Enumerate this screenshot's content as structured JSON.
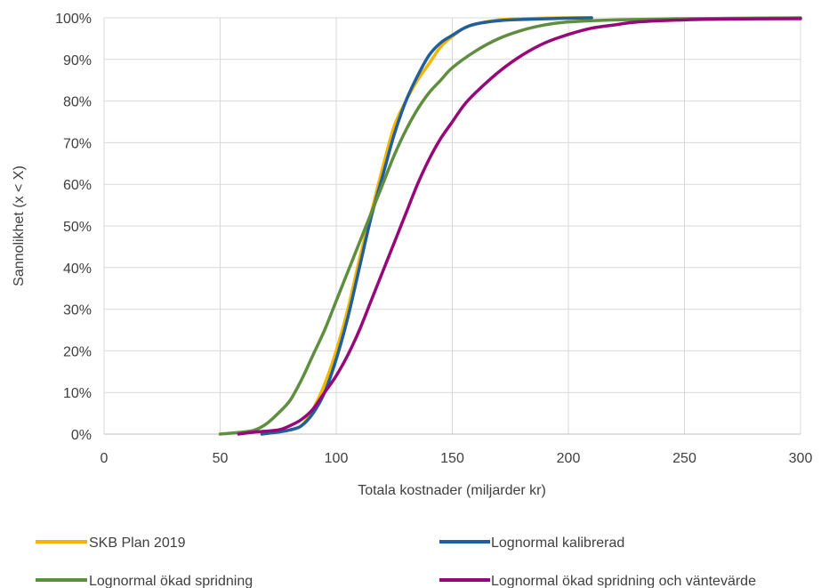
{
  "chart_data": {
    "type": "line",
    "title": "",
    "xlabel": "Totala kostnader (miljarder kr)",
    "ylabel": "Sannolikhet (x < X)",
    "xlim": [
      0,
      300
    ],
    "ylim": [
      0,
      1
    ],
    "x_ticks": [
      "0",
      "50",
      "100",
      "150",
      "200",
      "250",
      "300"
    ],
    "y_ticks": [
      "0%",
      "10%",
      "20%",
      "30%",
      "40%",
      "50%",
      "60%",
      "70%",
      "80%",
      "90%",
      "100%"
    ],
    "grid": "vertical and horizontal",
    "legend_position": "bottom",
    "series": [
      {
        "name": "SKB Plan 2019",
        "color": "#F2B600",
        "points": [
          [
            68,
            0.0
          ],
          [
            75,
            0.005
          ],
          [
            80,
            0.01
          ],
          [
            85,
            0.02
          ],
          [
            90,
            0.06
          ],
          [
            95,
            0.12
          ],
          [
            100,
            0.2
          ],
          [
            105,
            0.3
          ],
          [
            110,
            0.42
          ],
          [
            115,
            0.53
          ],
          [
            120,
            0.64
          ],
          [
            125,
            0.74
          ],
          [
            130,
            0.8
          ],
          [
            135,
            0.85
          ],
          [
            140,
            0.89
          ],
          [
            145,
            0.93
          ],
          [
            150,
            0.955
          ],
          [
            155,
            0.975
          ],
          [
            160,
            0.985
          ],
          [
            170,
            0.995
          ],
          [
            180,
            0.998
          ],
          [
            200,
            1.0
          ],
          [
            210,
            1.0
          ]
        ]
      },
      {
        "name": "Lognormal kalibrerad",
        "color": "#1F5F9E",
        "points": [
          [
            68,
            0.0
          ],
          [
            75,
            0.005
          ],
          [
            80,
            0.01
          ],
          [
            85,
            0.02
          ],
          [
            90,
            0.05
          ],
          [
            95,
            0.1
          ],
          [
            100,
            0.18
          ],
          [
            105,
            0.28
          ],
          [
            110,
            0.4
          ],
          [
            115,
            0.52
          ],
          [
            120,
            0.62
          ],
          [
            125,
            0.72
          ],
          [
            130,
            0.8
          ],
          [
            135,
            0.86
          ],
          [
            140,
            0.91
          ],
          [
            145,
            0.94
          ],
          [
            150,
            0.958
          ],
          [
            155,
            0.975
          ],
          [
            160,
            0.985
          ],
          [
            170,
            0.993
          ],
          [
            180,
            0.996
          ],
          [
            200,
            0.999
          ],
          [
            210,
            1.0
          ]
        ]
      },
      {
        "name": "Lognormal ökad spridning",
        "color": "#5E8E3E",
        "points": [
          [
            50,
            0.0
          ],
          [
            60,
            0.005
          ],
          [
            65,
            0.01
          ],
          [
            70,
            0.025
          ],
          [
            75,
            0.05
          ],
          [
            80,
            0.08
          ],
          [
            85,
            0.13
          ],
          [
            90,
            0.19
          ],
          [
            95,
            0.25
          ],
          [
            100,
            0.32
          ],
          [
            105,
            0.39
          ],
          [
            110,
            0.46
          ],
          [
            115,
            0.53
          ],
          [
            120,
            0.6
          ],
          [
            125,
            0.67
          ],
          [
            130,
            0.73
          ],
          [
            135,
            0.78
          ],
          [
            140,
            0.82
          ],
          [
            145,
            0.85
          ],
          [
            150,
            0.88
          ],
          [
            160,
            0.92
          ],
          [
            170,
            0.95
          ],
          [
            180,
            0.97
          ],
          [
            190,
            0.983
          ],
          [
            200,
            0.99
          ],
          [
            220,
            0.995
          ],
          [
            250,
            0.998
          ],
          [
            300,
            1.0
          ]
        ]
      },
      {
        "name": "Lognormal ökad spridning och väntevärde",
        "color": "#96087A",
        "points": [
          [
            58,
            0.0
          ],
          [
            65,
            0.005
          ],
          [
            75,
            0.01
          ],
          [
            80,
            0.02
          ],
          [
            85,
            0.035
          ],
          [
            90,
            0.06
          ],
          [
            95,
            0.1
          ],
          [
            100,
            0.14
          ],
          [
            105,
            0.19
          ],
          [
            110,
            0.25
          ],
          [
            115,
            0.32
          ],
          [
            120,
            0.39
          ],
          [
            125,
            0.46
          ],
          [
            130,
            0.53
          ],
          [
            135,
            0.6
          ],
          [
            140,
            0.66
          ],
          [
            145,
            0.71
          ],
          [
            150,
            0.75
          ],
          [
            155,
            0.79
          ],
          [
            160,
            0.82
          ],
          [
            170,
            0.87
          ],
          [
            180,
            0.91
          ],
          [
            190,
            0.94
          ],
          [
            200,
            0.96
          ],
          [
            210,
            0.975
          ],
          [
            220,
            0.983
          ],
          [
            230,
            0.99
          ],
          [
            250,
            0.995
          ],
          [
            270,
            0.997
          ],
          [
            300,
            0.998
          ]
        ]
      }
    ]
  }
}
